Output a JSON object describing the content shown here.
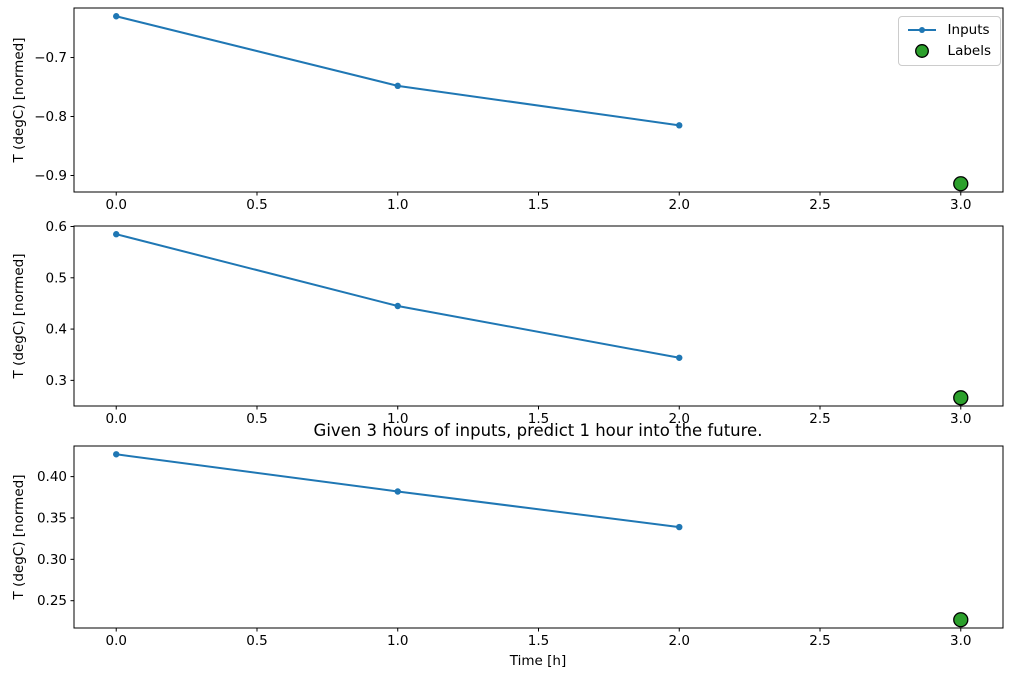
{
  "figure": {
    "title": "Given 3 hours of inputs, predict 1 hour into the future.",
    "xlabel": "Time [h]",
    "ylabel": "T (degC) [normed]",
    "background": "#ffffff"
  },
  "colors": {
    "inputs": "#1f77b4",
    "labels": "#2ca02c",
    "label_edge": "#000000",
    "axis": "#000000",
    "text": "#000000",
    "legend_border": "#cccccc"
  },
  "legend": {
    "position": "upper right",
    "items": [
      {
        "label": "Inputs",
        "marker": "line-with-dot"
      },
      {
        "label": "Labels",
        "marker": "filled-circle"
      }
    ]
  },
  "chart_data": [
    {
      "type": "line",
      "subplot": 1,
      "series": [
        {
          "name": "Inputs",
          "style": "line+marker",
          "x": [
            0,
            1,
            2
          ],
          "y": [
            -0.63,
            -0.748,
            -0.815
          ]
        },
        {
          "name": "Labels",
          "style": "scatter",
          "x": [
            3
          ],
          "y": [
            -0.914
          ]
        }
      ],
      "xlim": [
        -0.15,
        3.15
      ],
      "ylim": [
        -0.928,
        -0.616
      ],
      "xticks": [
        0,
        0.5,
        1,
        1.5,
        2,
        2.5,
        3
      ],
      "xtick_labels": [
        "0.0",
        "0.5",
        "1.0",
        "1.5",
        "2.0",
        "2.5",
        "3.0"
      ],
      "yticks": [
        -0.7,
        -0.8,
        -0.9
      ],
      "ytick_labels": [
        "−0.7",
        "−0.8",
        "−0.9"
      ],
      "ylabel": "T (degC) [normed]",
      "grid": false
    },
    {
      "type": "line",
      "subplot": 2,
      "series": [
        {
          "name": "Inputs",
          "style": "line+marker",
          "x": [
            0,
            1,
            2
          ],
          "y": [
            0.585,
            0.445,
            0.344
          ]
        },
        {
          "name": "Labels",
          "style": "scatter",
          "x": [
            3
          ],
          "y": [
            0.266
          ]
        }
      ],
      "xlim": [
        -0.15,
        3.15
      ],
      "ylim": [
        0.25,
        0.601
      ],
      "xticks": [
        0,
        0.5,
        1,
        1.5,
        2,
        2.5,
        3
      ],
      "xtick_labels": [
        "0.0",
        "0.5",
        "1.0",
        "1.5",
        "2.0",
        "2.5",
        "3.0"
      ],
      "yticks": [
        0.6,
        0.5,
        0.4,
        0.3
      ],
      "ytick_labels": [
        "0.6",
        "0.5",
        "0.4",
        "0.3"
      ],
      "ylabel": "T (degC) [normed]",
      "grid": false
    },
    {
      "type": "line",
      "subplot": 3,
      "series": [
        {
          "name": "Inputs",
          "style": "line+marker",
          "x": [
            0,
            1,
            2
          ],
          "y": [
            0.427,
            0.382,
            0.339
          ]
        },
        {
          "name": "Labels",
          "style": "scatter",
          "x": [
            3
          ],
          "y": [
            0.227
          ]
        }
      ],
      "xlim": [
        -0.15,
        3.15
      ],
      "ylim": [
        0.217,
        0.437
      ],
      "xticks": [
        0,
        0.5,
        1,
        1.5,
        2,
        2.5,
        3
      ],
      "xtick_labels": [
        "0.0",
        "0.5",
        "1.0",
        "1.5",
        "2.0",
        "2.5",
        "3.0"
      ],
      "yticks": [
        0.4,
        0.35,
        0.3,
        0.25
      ],
      "ytick_labels": [
        "0.40",
        "0.35",
        "0.30",
        "0.25"
      ],
      "ylabel": "T (degC) [normed]",
      "grid": false
    }
  ]
}
